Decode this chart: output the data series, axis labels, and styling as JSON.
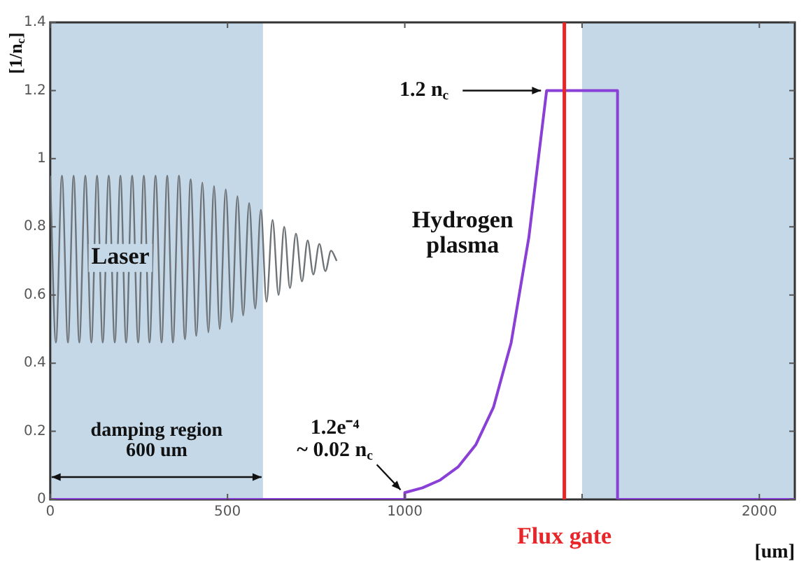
{
  "chart_data": {
    "type": "line",
    "xlabel": "[um]",
    "ylabel": "[1/n$_{c}$]",
    "xlim": [
      0,
      2100
    ],
    "ylim": [
      0,
      1.4
    ],
    "xticks": [
      0,
      500,
      1000,
      {
        "value": 1500,
        "label": null
      },
      2000
    ],
    "yticks": [
      0,
      0.2,
      0.4,
      0.6,
      0.8,
      1,
      1.2,
      1.4
    ],
    "grid": false,
    "legend": false,
    "marker": "none",
    "line_style": "solid",
    "series": [
      {
        "name": "Laser",
        "color": "#6e7377",
        "x": [
          0,
          16,
          33,
          50,
          66,
          82,
          99,
          116,
          132,
          148,
          165,
          182,
          198,
          214,
          231,
          248,
          264,
          280,
          297,
          314,
          330,
          346,
          363,
          380,
          396,
          412,
          429,
          446,
          462,
          478,
          495,
          512,
          528,
          544,
          561,
          578,
          594,
          610,
          627,
          644,
          660,
          676,
          693,
          710,
          726,
          742,
          759,
          776,
          792,
          808
        ],
        "values": [
          0.95,
          0.46,
          0.95,
          0.46,
          0.95,
          0.46,
          0.95,
          0.46,
          0.95,
          0.46,
          0.95,
          0.46,
          0.95,
          0.46,
          0.95,
          0.46,
          0.95,
          0.46,
          0.95,
          0.46,
          0.95,
          0.46,
          0.95,
          0.47,
          0.94,
          0.48,
          0.93,
          0.49,
          0.92,
          0.5,
          0.91,
          0.52,
          0.89,
          0.54,
          0.87,
          0.56,
          0.85,
          0.58,
          0.82,
          0.6,
          0.8,
          0.62,
          0.78,
          0.64,
          0.76,
          0.66,
          0.75,
          0.67,
          0.73,
          0.7
        ]
      },
      {
        "name": "Hydrogen\nplasma",
        "color": "#8a3fd6",
        "x": [
          0,
          1000,
          1000,
          1050,
          1100,
          1150,
          1200,
          1250,
          1300,
          1350,
          1400,
          1600,
          1600,
          2100
        ],
        "values": [
          0,
          0,
          0.02,
          0.034,
          0.057,
          0.095,
          0.16,
          0.27,
          0.46,
          0.77,
          1.2,
          1.2,
          0,
          0
        ]
      }
    ],
    "bands": [
      {
        "axis": "x",
        "from": 0,
        "to": 600,
        "label": "damping region\n600 um",
        "color": "#c5d8e8"
      },
      {
        "axis": "x",
        "from": 1500,
        "to": 2100,
        "color": "#c5d8e8"
      }
    ],
    "ref_lines": [
      {
        "axis": "x",
        "value": 1450,
        "label": "Flux gate",
        "color": "#e8262a"
      }
    ],
    "annotations": [
      {
        "text": "1.2 n$_{c}$",
        "x": 1400,
        "y": 1.2
      },
      {
        "text": "1.2e⁻⁴\n~ 0.02 n$_{c}$",
        "x": 1000,
        "y": 0.02
      }
    ]
  }
}
